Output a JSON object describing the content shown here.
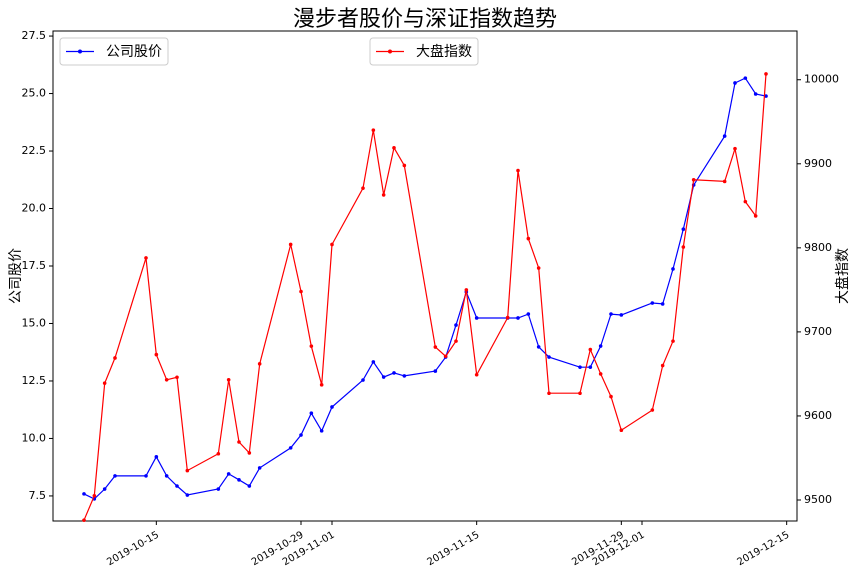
{
  "chart_data": {
    "type": "line",
    "title": "漫步者股价与深证指数趋势",
    "y_label": "公司股价",
    "y2_label": "大盘指数",
    "x": [
      "2019-10-08",
      "2019-10-09",
      "2019-10-10",
      "2019-10-11",
      "2019-10-14",
      "2019-10-15",
      "2019-10-16",
      "2019-10-17",
      "2019-10-18",
      "2019-10-21",
      "2019-10-22",
      "2019-10-23",
      "2019-10-24",
      "2019-10-25",
      "2019-10-28",
      "2019-10-29",
      "2019-10-30",
      "2019-10-31",
      "2019-11-01",
      "2019-11-04",
      "2019-11-05",
      "2019-11-06",
      "2019-11-07",
      "2019-11-08",
      "2019-11-11",
      "2019-11-12",
      "2019-11-13",
      "2019-11-14",
      "2019-11-15",
      "2019-11-18",
      "2019-11-19",
      "2019-11-20",
      "2019-11-21",
      "2019-11-22",
      "2019-11-25",
      "2019-11-26",
      "2019-11-27",
      "2019-11-28",
      "2019-11-29",
      "2019-12-02",
      "2019-12-03",
      "2019-12-04",
      "2019-12-05",
      "2019-12-06",
      "2019-12-09",
      "2019-12-10",
      "2019-12-11",
      "2019-12-12",
      "2019-12-13"
    ],
    "series": [
      {
        "name": "公司股价",
        "color": "#0000ff",
        "legend": "upper left",
        "values": [
          7.59,
          7.37,
          7.8,
          8.37,
          8.37,
          9.2,
          8.37,
          7.93,
          7.54,
          7.8,
          8.46,
          8.2,
          7.93,
          8.72,
          9.59,
          10.15,
          11.1,
          10.33,
          11.37,
          12.54,
          13.33,
          12.67,
          12.85,
          12.72,
          12.93,
          13.54,
          14.93,
          16.37,
          15.24,
          15.24,
          15.24,
          15.41,
          13.98,
          13.54,
          13.1,
          13.1,
          14.02,
          15.41,
          15.37,
          15.89,
          15.85,
          17.37,
          19.1,
          21.02,
          23.15,
          25.46,
          25.67,
          24.98,
          24.89
        ]
      },
      {
        "name": "大盘指数",
        "color": "#ff0000",
        "axis": "y2",
        "legend": "upper center",
        "values": [
          9476,
          9505,
          9639,
          9669,
          9788,
          9673,
          9643,
          9646,
          9535,
          9555,
          9643,
          9569,
          9556,
          9662,
          9804,
          9748,
          9683,
          9637,
          9804,
          9871,
          9940,
          9863,
          9919,
          9898,
          9682,
          9671,
          9689,
          9750,
          9649,
          9717,
          9892,
          9811,
          9776,
          9627,
          9627,
          9679,
          9650,
          9623,
          9583,
          9607,
          9660,
          9689,
          9801,
          9881,
          9879,
          9918,
          9855,
          9838,
          10007
        ]
      }
    ],
    "xlim": [
      "2019-10-05",
      "2019-12-16"
    ],
    "xticks": [
      "2019-10-15",
      "2019-10-29",
      "2019-11-01",
      "2019-11-15",
      "2019-11-29",
      "2019-12-01",
      "2019-12-15"
    ],
    "ylim": [
      6.41,
      27.72
    ],
    "yticks": [
      7.5,
      {
        "value": 10,
        "label": "10.0"
      },
      12.5,
      {
        "value": 15,
        "label": "15.0"
      },
      17.5,
      {
        "value": 20,
        "label": "20.0"
      },
      22.5,
      {
        "value": 25,
        "label": "25.0"
      },
      27.5
    ],
    "y2lim": [
      9475,
      10058
    ],
    "y2ticks": [
      9500,
      9600,
      9700,
      9800,
      9900,
      10000
    ]
  }
}
